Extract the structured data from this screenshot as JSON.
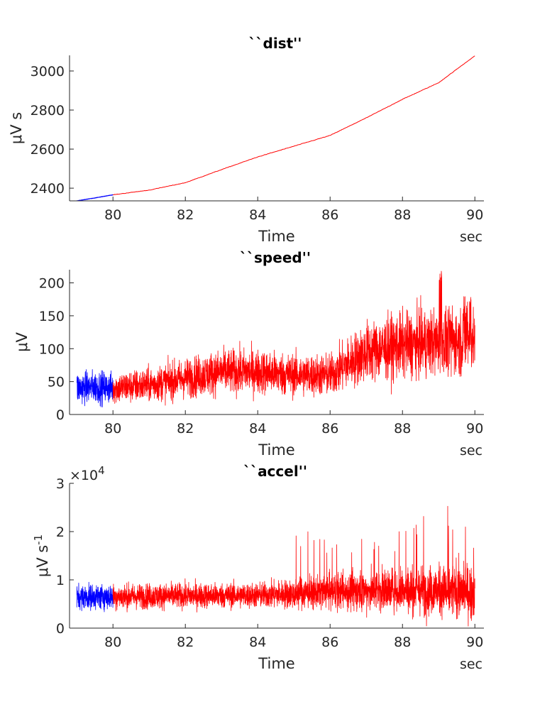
{
  "colors": {
    "blue_segment": "#0000ff",
    "red_segment": "#ff0000",
    "axis": "#262626"
  },
  "chart_data": [
    {
      "type": "line",
      "title": "``dist''",
      "xlabel": "Time",
      "x_unit": "sec",
      "ylabel": "μV s",
      "xlim": [
        78.8,
        90.25
      ],
      "ylim": [
        2335,
        3080
      ],
      "xticks": [
        80,
        82,
        84,
        86,
        88,
        90
      ],
      "yticks": [
        2400,
        2600,
        2800,
        3000
      ],
      "grid": false,
      "series": [
        {
          "color": "#0000ff",
          "x": [
            79,
            79.5,
            80
          ],
          "y": [
            2335,
            2350,
            2366
          ]
        },
        {
          "color": "#ff0000",
          "x": [
            80,
            81,
            82,
            83,
            84,
            85,
            86,
            87,
            88,
            89,
            90
          ],
          "y": [
            2366,
            2390,
            2428,
            2495,
            2560,
            2615,
            2670,
            2760,
            2855,
            2940,
            3078
          ]
        }
      ]
    },
    {
      "type": "line",
      "title": "``speed''",
      "xlabel": "Time",
      "x_unit": "sec",
      "ylabel": "μV",
      "xlim": [
        78.8,
        90.25
      ],
      "ylim": [
        0,
        220
      ],
      "xticks": [
        80,
        82,
        84,
        86,
        88,
        90
      ],
      "yticks": [
        0,
        50,
        100,
        150,
        200
      ],
      "grid": false,
      "series": [
        {
          "color": "#0000ff",
          "x": [
            79,
            79.5,
            80
          ],
          "y": [
            40,
            42,
            40
          ]
        },
        {
          "color": "#ff0000",
          "x": [
            80,
            81,
            82,
            83,
            84,
            85,
            86,
            87,
            88,
            89,
            90
          ],
          "y": [
            40,
            45,
            55,
            65,
            65,
            60,
            60,
            95,
            105,
            110,
            115
          ]
        }
      ]
    },
    {
      "type": "line",
      "title": "``accel''",
      "xlabel": "Time",
      "x_unit": "sec",
      "ylabel": "μV s",
      "ylabel_superscript": "-1",
      "y_exponent_label": "×10",
      "y_exponent_power": "4",
      "xlim": [
        78.8,
        90.25
      ],
      "ylim": [
        0,
        30000
      ],
      "xticks": [
        80,
        82,
        84,
        86,
        88,
        90
      ],
      "yticks": [
        0,
        10000,
        20000,
        30000
      ],
      "ytick_labels": [
        "0",
        "1",
        "2",
        "3"
      ],
      "grid": false,
      "series": [
        {
          "color": "#0000ff",
          "x": [
            79,
            79.5,
            80
          ],
          "y": [
            6500,
            6500,
            6500
          ]
        },
        {
          "color": "#ff0000",
          "x": [
            80,
            82,
            84,
            86,
            88,
            90
          ],
          "y": [
            6500,
            6700,
            6800,
            7500,
            8000,
            7500
          ]
        }
      ]
    }
  ]
}
